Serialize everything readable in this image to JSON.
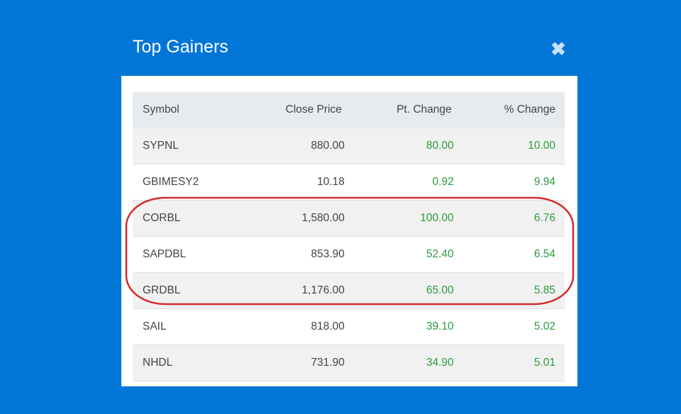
{
  "modal": {
    "title": "Top Gainers",
    "close_icon": "close-icon"
  },
  "table": {
    "headers": [
      "Symbol",
      "Close Price",
      "Pt. Change",
      "% Change"
    ],
    "rows": [
      [
        "SYPNL",
        "880.00",
        "80.00",
        "10.00"
      ],
      [
        "GBIMESY2",
        "10.18",
        "0.92",
        "9.94"
      ],
      [
        "CORBL",
        "1,580.00",
        "100.00",
        "6.76"
      ],
      [
        "SAPDBL",
        "853.90",
        "52.40",
        "6.54"
      ],
      [
        "GRDBL",
        "1,176.00",
        "65.00",
        "5.85"
      ],
      [
        "SAIL",
        "818.00",
        "39.10",
        "5.02"
      ],
      [
        "NHDL",
        "731.90",
        "34.90",
        "5.01"
      ]
    ]
  },
  "colors": {
    "background": "#0276d6",
    "positive": "#2e9a3e",
    "highlight": "#d42a2a"
  }
}
